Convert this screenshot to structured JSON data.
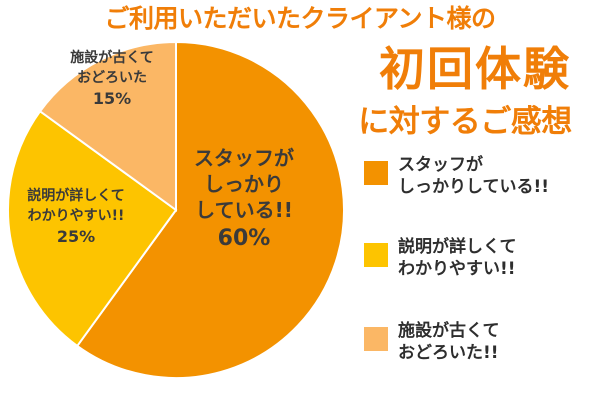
{
  "header": {
    "line1": "ご利用いただいたクライアント様の",
    "line2": "初回体験",
    "line3": "に対するご感想"
  },
  "colors": {
    "title": "#f07e08",
    "staff": "#f39200",
    "explain": "#fdc400",
    "facility": "#fbb765",
    "slice_border": "#ffffff"
  },
  "chart_data": {
    "type": "pie",
    "title": "",
    "start_angle_deg": 0,
    "direction": "clockwise",
    "slices": [
      {
        "label_lines": [
          "スタッフが",
          "しっかり",
          "している!!"
        ],
        "percent_text": "60%",
        "value": 60,
        "color": "#f39200"
      },
      {
        "label_lines": [
          "説明が詳しくて",
          "わかりやすい!!"
        ],
        "percent_text": "25%",
        "value": 25,
        "color": "#fdc400"
      },
      {
        "label_lines": [
          "施設が古くて",
          "おどろいた"
        ],
        "percent_text": "15%",
        "value": 15,
        "color": "#fbb765"
      }
    ],
    "legend": {
      "placement": "right",
      "items": [
        {
          "lines": [
            "スタッフが",
            "しっかりしている!!"
          ],
          "color": "#f39200"
        },
        {
          "lines": [
            "説明が詳しくて",
            "わかりやすい!!"
          ],
          "color": "#fdc400"
        },
        {
          "lines": [
            "施設が古くて",
            "おどろいた!!"
          ],
          "color": "#fbb765"
        }
      ]
    }
  }
}
